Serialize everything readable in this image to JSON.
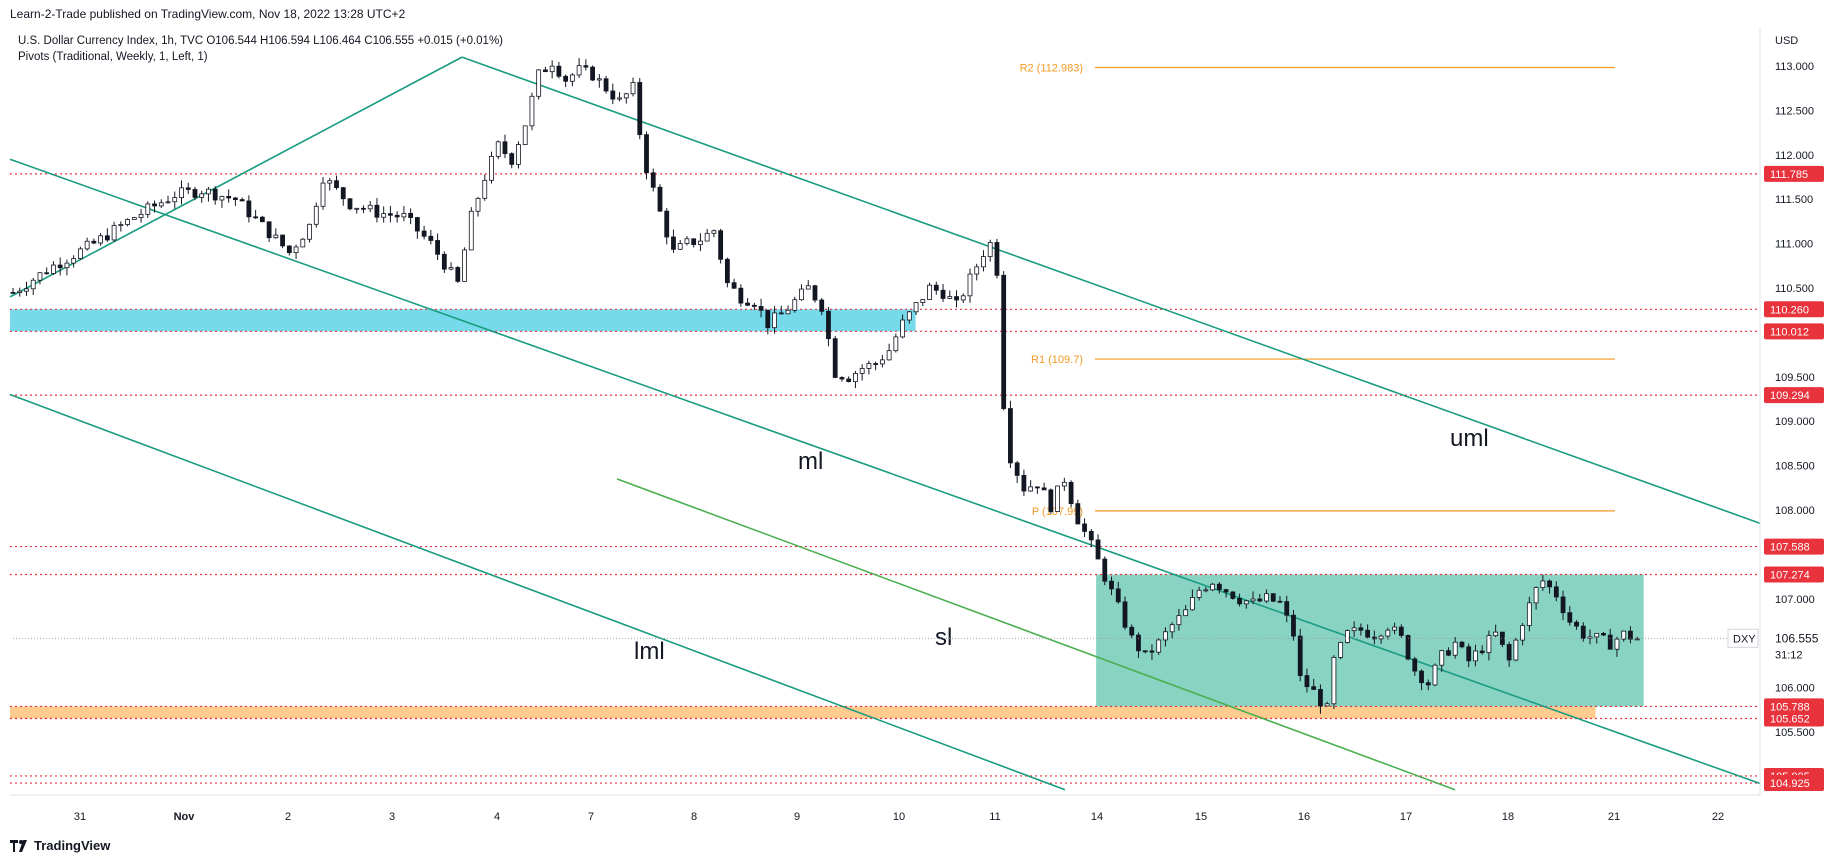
{
  "header": {
    "published": "Learn-2-Trade published on TradingView.com, Nov 18, 2022 13:28 UTC+2"
  },
  "legend": {
    "line1": "U.S. Dollar Currency Index, 1h, TVC  O106.544  H106.594  L106.464  C106.555  +0.015 (+0.01%)",
    "line2": "Pivots (Traditional, Weekly, 1, Left, 1)"
  },
  "footer": {
    "brand": "TradingView"
  },
  "colors": {
    "channel": "#1a9c82",
    "sl_line": "#4caf50",
    "pivot": "#f59a23",
    "level": "#e8323c",
    "zone_blue": "#5fd3e6",
    "zone_orange": "#ffbe73",
    "zone_green": "#60c4ad",
    "candle": "#131722"
  },
  "chart_data": {
    "type": "candlestick",
    "symbol": "DXY",
    "timeframe": "1h",
    "price_axis_unit": "USD",
    "ylim": [
      104.75,
      113.3
    ],
    "y_ticks": [
      "113.000",
      "112.500",
      "112.000",
      "111.500",
      "111.000",
      "110.500",
      "110.000",
      "109.500",
      "109.000",
      "108.500",
      "108.000",
      "107.000",
      "106.000",
      "105.500"
    ],
    "x_ticks": [
      "31",
      "Nov",
      "2",
      "3",
      "4",
      "7",
      "8",
      "9",
      "10",
      "11",
      "14",
      "15",
      "16",
      "17",
      "18",
      "21",
      "22"
    ],
    "last_price": "106.555",
    "countdown": "31:12",
    "horizontal_levels": [
      {
        "price": 111.785,
        "label": "111.785"
      },
      {
        "price": 110.26,
        "label": "110.260"
      },
      {
        "price": 110.012,
        "label": "110.012"
      },
      {
        "price": 109.294,
        "label": "109.294"
      },
      {
        "price": 107.588,
        "label": "107.588"
      },
      {
        "price": 107.274,
        "label": "107.274"
      },
      {
        "price": 105.788,
        "label": "105.788"
      },
      {
        "price": 105.652,
        "label": "105.652"
      },
      {
        "price": 105.005,
        "label": "105.005"
      },
      {
        "price": 104.925,
        "label": "104.925"
      }
    ],
    "pivots": [
      {
        "name": "R2",
        "price": 112.983,
        "label": "R2 (112.983)"
      },
      {
        "name": "R1",
        "price": 109.7,
        "label": "R1 (109.7)"
      },
      {
        "name": "P",
        "price": 107.99,
        "label": "P (107.99)"
      }
    ],
    "annotations": [
      {
        "text": "uml"
      },
      {
        "text": "ml"
      },
      {
        "text": "sl"
      },
      {
        "text": "lml"
      }
    ],
    "zones": [
      {
        "name": "resistance-zone",
        "color": "blue",
        "from": 110.012,
        "to": 110.26
      },
      {
        "name": "support-zone",
        "color": "orange",
        "from": 105.652,
        "to": 105.788
      },
      {
        "name": "range-box",
        "color": "green",
        "from": 105.788,
        "to": 107.274
      }
    ],
    "price_path": [
      [
        0,
        110.45
      ],
      [
        6,
        110.75
      ],
      [
        12,
        111.0
      ],
      [
        18,
        111.3
      ],
      [
        24,
        111.55
      ],
      [
        28,
        111.6
      ],
      [
        33,
        111.5
      ],
      [
        37,
        111.2
      ],
      [
        41,
        110.9
      ],
      [
        44,
        111.2
      ],
      [
        46,
        111.75
      ],
      [
        50,
        111.45
      ],
      [
        54,
        111.35
      ],
      [
        58,
        111.3
      ],
      [
        62,
        111.0
      ],
      [
        66,
        110.55
      ],
      [
        68,
        111.3
      ],
      [
        70,
        111.75
      ],
      [
        72,
        112.1
      ],
      [
        74,
        111.95
      ],
      [
        76,
        112.35
      ],
      [
        78,
        112.9
      ],
      [
        80,
        113.05
      ],
      [
        82,
        112.85
      ],
      [
        84,
        112.95
      ],
      [
        86,
        112.9
      ],
      [
        88,
        112.75
      ],
      [
        90,
        112.6
      ],
      [
        92,
        112.75
      ],
      [
        93,
        112.25
      ],
      [
        94,
        111.85
      ],
      [
        96,
        111.35
      ],
      [
        98,
        110.9
      ],
      [
        100,
        111.0
      ],
      [
        102,
        111.05
      ],
      [
        104,
        111.15
      ],
      [
        106,
        110.55
      ],
      [
        108,
        110.4
      ],
      [
        110,
        110.35
      ],
      [
        112,
        110.1
      ],
      [
        114,
        110.2
      ],
      [
        116,
        110.35
      ],
      [
        118,
        110.5
      ],
      [
        120,
        110.3
      ],
      [
        122,
        109.55
      ],
      [
        124,
        109.5
      ],
      [
        126,
        109.6
      ],
      [
        128,
        109.65
      ],
      [
        130,
        109.8
      ],
      [
        132,
        110.1
      ],
      [
        134,
        110.3
      ],
      [
        136,
        110.5
      ],
      [
        138,
        110.45
      ],
      [
        140,
        110.3
      ],
      [
        142,
        110.6
      ],
      [
        144,
        110.9
      ],
      [
        145,
        111.0
      ],
      [
        146,
        110.7
      ],
      [
        147,
        109.2
      ],
      [
        148,
        108.6
      ],
      [
        150,
        108.25
      ],
      [
        152,
        108.3
      ],
      [
        154,
        108.05
      ],
      [
        156,
        108.35
      ],
      [
        158,
        107.9
      ],
      [
        160,
        107.6
      ],
      [
        162,
        107.25
      ],
      [
        164,
        106.9
      ],
      [
        166,
        106.55
      ],
      [
        168,
        106.35
      ],
      [
        170,
        106.5
      ],
      [
        172,
        106.7
      ],
      [
        174,
        106.85
      ],
      [
        176,
        107.1
      ],
      [
        178,
        107.2
      ],
      [
        180,
        107.1
      ],
      [
        182,
        107.0
      ],
      [
        184,
        106.95
      ],
      [
        186,
        107.0
      ],
      [
        188,
        106.95
      ],
      [
        190,
        106.6
      ],
      [
        191,
        106.1
      ],
      [
        193,
        105.95
      ],
      [
        195,
        105.75
      ],
      [
        196,
        106.3
      ],
      [
        198,
        106.6
      ],
      [
        200,
        106.65
      ],
      [
        202,
        106.6
      ],
      [
        204,
        106.7
      ],
      [
        206,
        106.55
      ],
      [
        208,
        106.2
      ],
      [
        210,
        106.05
      ],
      [
        212,
        106.35
      ],
      [
        214,
        106.5
      ],
      [
        216,
        106.3
      ],
      [
        218,
        106.45
      ],
      [
        220,
        106.6
      ],
      [
        222,
        106.3
      ],
      [
        224,
        106.75
      ],
      [
        226,
        107.1
      ],
      [
        227,
        107.2
      ],
      [
        229,
        107.05
      ],
      [
        231,
        106.75
      ],
      [
        233,
        106.6
      ],
      [
        235,
        106.55
      ],
      [
        237,
        106.5
      ],
      [
        239,
        106.6
      ],
      [
        241,
        106.55
      ]
    ]
  }
}
